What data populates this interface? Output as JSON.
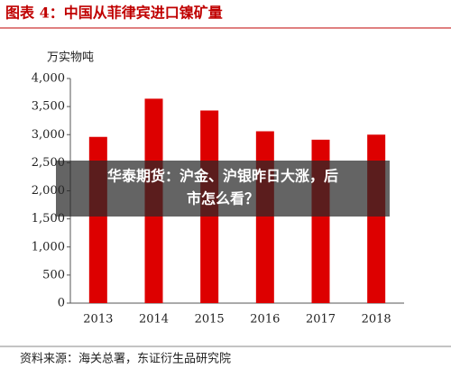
{
  "chart_data": {
    "type": "bar",
    "title": "图表 4：中国从菲律宾进口镍矿量",
    "y_label": "万实物吨",
    "categories": [
      "2013",
      "2014",
      "2015",
      "2016",
      "2017",
      "2018"
    ],
    "values": [
      2960,
      3640,
      3430,
      3060,
      2910,
      3000
    ],
    "color": "#dd0000",
    "ylim": [
      0,
      4000
    ],
    "yticks": [
      0,
      {
        "value": 500,
        "label": "500"
      },
      {
        "value": 1000,
        "label": "1,000"
      },
      {
        "value": 1500,
        "label": "1,500"
      },
      {
        "value": 2000,
        "label": "2,000"
      },
      {
        "value": 2500,
        "label": "2,500"
      },
      {
        "value": 3000,
        "label": "3,000"
      },
      {
        "value": 3500,
        "label": "3,500"
      },
      {
        "value": 4000,
        "label": "4,000"
      }
    ],
    "grid": false,
    "source": "资料来源：海关总署，东证衍生品研究院"
  },
  "overlay": {
    "lines": [
      "华泰期货：沪金、沪银昨日大涨，后",
      "市怎么看？"
    ]
  }
}
